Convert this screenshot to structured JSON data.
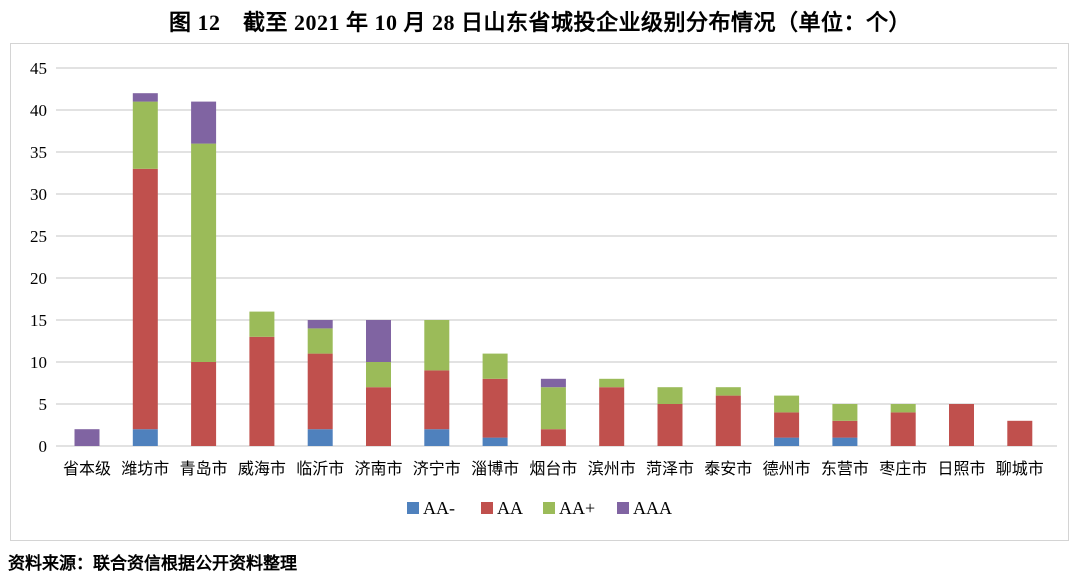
{
  "figure": {
    "title": "图 12　截至 2021 年 10 月 28 日山东省城投企业级别分布情况（单位：个）",
    "source": "资料来源：联合资信根据公开资料整理"
  },
  "chart_data": {
    "type": "bar",
    "stacked": true,
    "title": "截至2021年10月28日山东省城投企业级别分布情况",
    "unit_label": "个",
    "categories": [
      "省本级",
      "潍坊市",
      "青岛市",
      "威海市",
      "临沂市",
      "济南市",
      "济宁市",
      "淄博市",
      "烟台市",
      "滨州市",
      "菏泽市",
      "泰安市",
      "德州市",
      "东营市",
      "枣庄市",
      "日照市",
      "聊城市"
    ],
    "series": [
      {
        "name": "AA-",
        "color": "#4f81bd",
        "values": [
          0,
          2,
          0,
          0,
          2,
          0,
          2,
          1,
          0,
          0,
          0,
          0,
          1,
          1,
          0,
          0,
          0
        ]
      },
      {
        "name": "AA",
        "color": "#c0504d",
        "values": [
          0,
          31,
          10,
          13,
          9,
          7,
          7,
          7,
          2,
          7,
          5,
          6,
          3,
          2,
          4,
          5,
          3
        ]
      },
      {
        "name": "AA+",
        "color": "#9bbb59",
        "values": [
          0,
          8,
          26,
          3,
          3,
          3,
          6,
          3,
          5,
          1,
          2,
          1,
          2,
          2,
          1,
          0,
          0
        ]
      },
      {
        "name": "AAA",
        "color": "#8064a2",
        "values": [
          2,
          1,
          5,
          0,
          1,
          5,
          0,
          0,
          1,
          0,
          0,
          0,
          0,
          0,
          0,
          0,
          0
        ]
      }
    ],
    "ylim": [
      0,
      45
    ],
    "ytick_step": 5,
    "yticks": [
      0,
      5,
      10,
      15,
      20,
      25,
      30,
      35,
      40,
      45
    ],
    "grid": true,
    "gridline_color": "#d9d9d9",
    "legend_position": "bottom",
    "legend_labels": [
      "AA-",
      "AA",
      "AA+",
      "AAA"
    ]
  }
}
